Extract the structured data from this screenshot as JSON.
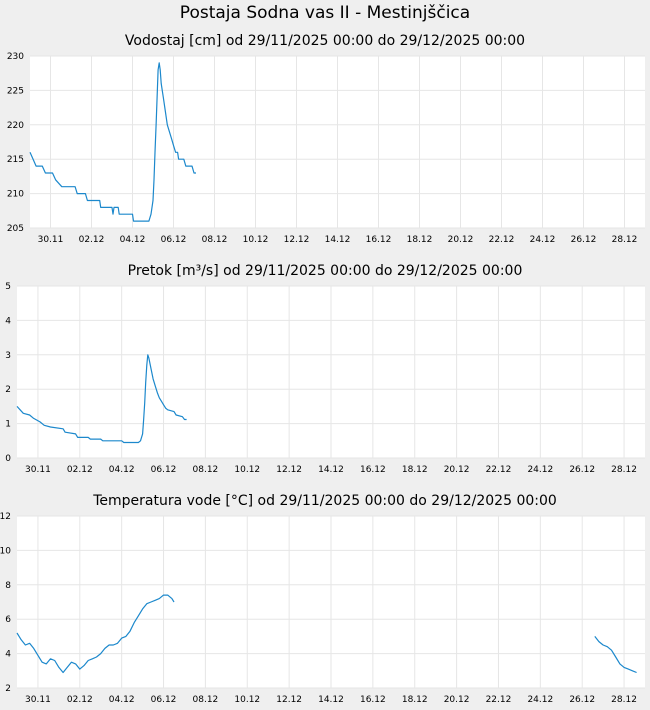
{
  "page_title": "Postaja Sodna vas II - Mestinjščica",
  "colors": {
    "series": "#1c88cc",
    "plot_bg": "#ffffff",
    "grid": "#e6e6e6",
    "page_bg": "#efefef"
  },
  "chart_data": [
    {
      "type": "line",
      "title": "Vodostaj [cm] od 29/11/2025 00:00 do 29/12/2025 00:00",
      "xlim": [
        0,
        30
      ],
      "ylim": [
        205,
        230
      ],
      "yticks": [
        205,
        210,
        215,
        220,
        225,
        230
      ],
      "xticks": [
        {
          "x": 1,
          "label": "30.11"
        },
        {
          "x": 3,
          "label": "02.12"
        },
        {
          "x": 5,
          "label": "04.12"
        },
        {
          "x": 7,
          "label": "06.12"
        },
        {
          "x": 9,
          "label": "08.12"
        },
        {
          "x": 11,
          "label": "10.12"
        },
        {
          "x": 13,
          "label": "12.12"
        },
        {
          "x": 15,
          "label": "14.12"
        },
        {
          "x": 17,
          "label": "16.12"
        },
        {
          "x": 19,
          "label": "18.12"
        },
        {
          "x": 21,
          "label": "20.12"
        },
        {
          "x": 23,
          "label": "22.12"
        },
        {
          "x": 25,
          "label": "24.12"
        },
        {
          "x": 27,
          "label": "26.12"
        },
        {
          "x": 29,
          "label": "28.12"
        }
      ],
      "series": [
        {
          "segments": [
            [
              [
                0.0,
                216
              ],
              [
                0.15,
                215
              ],
              [
                0.3,
                214
              ],
              [
                0.6,
                214
              ],
              [
                0.75,
                213
              ],
              [
                1.1,
                213
              ],
              [
                1.25,
                212
              ],
              [
                1.55,
                211
              ],
              [
                2.2,
                211
              ],
              [
                2.3,
                210
              ],
              [
                2.7,
                210
              ],
              [
                2.8,
                209
              ],
              [
                3.4,
                209
              ],
              [
                3.45,
                208
              ],
              [
                4.0,
                208
              ],
              [
                4.05,
                207
              ],
              [
                4.1,
                208
              ],
              [
                4.3,
                208
              ],
              [
                4.35,
                207
              ],
              [
                5.0,
                207
              ],
              [
                5.05,
                206
              ],
              [
                5.8,
                206
              ],
              [
                5.9,
                207
              ],
              [
                6.0,
                209
              ],
              [
                6.05,
                212
              ],
              [
                6.1,
                216
              ],
              [
                6.15,
                220
              ],
              [
                6.2,
                224
              ],
              [
                6.25,
                228
              ],
              [
                6.3,
                229
              ],
              [
                6.35,
                228
              ],
              [
                6.4,
                226
              ],
              [
                6.5,
                224
              ],
              [
                6.6,
                222
              ],
              [
                6.7,
                220
              ],
              [
                6.8,
                219
              ],
              [
                6.9,
                218
              ],
              [
                7.0,
                217
              ],
              [
                7.1,
                216
              ],
              [
                7.2,
                216
              ],
              [
                7.25,
                215
              ],
              [
                7.5,
                215
              ],
              [
                7.6,
                214
              ],
              [
                7.9,
                214
              ],
              [
                8.0,
                213
              ],
              [
                8.1,
                213
              ]
            ]
          ]
        }
      ]
    },
    {
      "type": "line",
      "title": "Pretok [m³/s] od 29/11/2025 00:00 do 29/12/2025 00:00",
      "xlim": [
        0,
        30
      ],
      "ylim": [
        0,
        5
      ],
      "yticks": [
        0,
        1,
        2,
        3,
        4,
        5
      ],
      "xticks": [
        {
          "x": 1,
          "label": "30.11"
        },
        {
          "x": 3,
          "label": "02.12"
        },
        {
          "x": 5,
          "label": "04.12"
        },
        {
          "x": 7,
          "label": "06.12"
        },
        {
          "x": 9,
          "label": "08.12"
        },
        {
          "x": 11,
          "label": "10.12"
        },
        {
          "x": 13,
          "label": "12.12"
        },
        {
          "x": 15,
          "label": "14.12"
        },
        {
          "x": 17,
          "label": "16.12"
        },
        {
          "x": 19,
          "label": "18.12"
        },
        {
          "x": 21,
          "label": "20.12"
        },
        {
          "x": 23,
          "label": "22.12"
        },
        {
          "x": 25,
          "label": "24.12"
        },
        {
          "x": 27,
          "label": "26.12"
        },
        {
          "x": 29,
          "label": "28.12"
        }
      ],
      "series": [
        {
          "segments": [
            [
              [
                0.0,
                1.5
              ],
              [
                0.15,
                1.4
              ],
              [
                0.3,
                1.3
              ],
              [
                0.6,
                1.25
              ],
              [
                0.8,
                1.15
              ],
              [
                1.1,
                1.05
              ],
              [
                1.3,
                0.95
              ],
              [
                1.6,
                0.9
              ],
              [
                2.2,
                0.85
              ],
              [
                2.3,
                0.75
              ],
              [
                2.8,
                0.7
              ],
              [
                2.9,
                0.6
              ],
              [
                3.4,
                0.6
              ],
              [
                3.5,
                0.55
              ],
              [
                4.0,
                0.55
              ],
              [
                4.1,
                0.5
              ],
              [
                5.0,
                0.5
              ],
              [
                5.1,
                0.45
              ],
              [
                5.8,
                0.45
              ],
              [
                5.9,
                0.5
              ],
              [
                6.0,
                0.7
              ],
              [
                6.05,
                1.1
              ],
              [
                6.1,
                1.6
              ],
              [
                6.15,
                2.2
              ],
              [
                6.2,
                2.7
              ],
              [
                6.25,
                3.0
              ],
              [
                6.3,
                2.9
              ],
              [
                6.4,
                2.6
              ],
              [
                6.5,
                2.3
              ],
              [
                6.6,
                2.1
              ],
              [
                6.7,
                1.9
              ],
              [
                6.8,
                1.75
              ],
              [
                6.9,
                1.65
              ],
              [
                7.0,
                1.55
              ],
              [
                7.1,
                1.45
              ],
              [
                7.2,
                1.4
              ],
              [
                7.5,
                1.35
              ],
              [
                7.6,
                1.25
              ],
              [
                7.9,
                1.2
              ],
              [
                8.0,
                1.12
              ],
              [
                8.1,
                1.12
              ]
            ]
          ]
        }
      ]
    },
    {
      "type": "line",
      "title": "Temperatura vode [°C] od 29/11/2025 00:00 do 29/12/2025 00:00",
      "xlim": [
        0,
        30
      ],
      "ylim": [
        2,
        12
      ],
      "yticks": [
        2,
        4,
        6,
        8,
        10,
        12
      ],
      "xticks": [
        {
          "x": 1,
          "label": "30.11"
        },
        {
          "x": 3,
          "label": "02.12"
        },
        {
          "x": 5,
          "label": "04.12"
        },
        {
          "x": 7,
          "label": "06.12"
        },
        {
          "x": 9,
          "label": "08.12"
        },
        {
          "x": 11,
          "label": "10.12"
        },
        {
          "x": 13,
          "label": "12.12"
        },
        {
          "x": 15,
          "label": "14.12"
        },
        {
          "x": 17,
          "label": "16.12"
        },
        {
          "x": 19,
          "label": "18.12"
        },
        {
          "x": 21,
          "label": "20.12"
        },
        {
          "x": 23,
          "label": "22.12"
        },
        {
          "x": 25,
          "label": "24.12"
        },
        {
          "x": 27,
          "label": "26.12"
        },
        {
          "x": 29,
          "label": "28.12"
        }
      ],
      "series": [
        {
          "segments": [
            [
              [
                0.0,
                5.2
              ],
              [
                0.2,
                4.8
              ],
              [
                0.4,
                4.5
              ],
              [
                0.6,
                4.6
              ],
              [
                0.8,
                4.3
              ],
              [
                1.0,
                3.9
              ],
              [
                1.2,
                3.5
              ],
              [
                1.4,
                3.4
              ],
              [
                1.6,
                3.7
              ],
              [
                1.8,
                3.6
              ],
              [
                2.0,
                3.2
              ],
              [
                2.2,
                2.9
              ],
              [
                2.4,
                3.2
              ],
              [
                2.6,
                3.5
              ],
              [
                2.8,
                3.4
              ],
              [
                3.0,
                3.1
              ],
              [
                3.2,
                3.3
              ],
              [
                3.4,
                3.6
              ],
              [
                3.6,
                3.7
              ],
              [
                3.8,
                3.8
              ],
              [
                4.0,
                4.0
              ],
              [
                4.2,
                4.3
              ],
              [
                4.4,
                4.5
              ],
              [
                4.6,
                4.5
              ],
              [
                4.8,
                4.6
              ],
              [
                5.0,
                4.9
              ],
              [
                5.2,
                5.0
              ],
              [
                5.4,
                5.3
              ],
              [
                5.6,
                5.8
              ],
              [
                5.8,
                6.2
              ],
              [
                6.0,
                6.6
              ],
              [
                6.2,
                6.9
              ],
              [
                6.4,
                7.0
              ],
              [
                6.6,
                7.1
              ],
              [
                6.8,
                7.2
              ],
              [
                7.0,
                7.4
              ],
              [
                7.2,
                7.4
              ],
              [
                7.4,
                7.2
              ],
              [
                7.5,
                7.0
              ]
            ],
            [
              [
                27.6,
                5.0
              ],
              [
                27.8,
                4.7
              ],
              [
                28.0,
                4.5
              ],
              [
                28.2,
                4.4
              ],
              [
                28.4,
                4.2
              ],
              [
                28.6,
                3.8
              ],
              [
                28.8,
                3.4
              ],
              [
                29.0,
                3.2
              ],
              [
                29.2,
                3.1
              ],
              [
                29.4,
                3.0
              ],
              [
                29.6,
                2.9
              ]
            ]
          ]
        }
      ]
    }
  ]
}
